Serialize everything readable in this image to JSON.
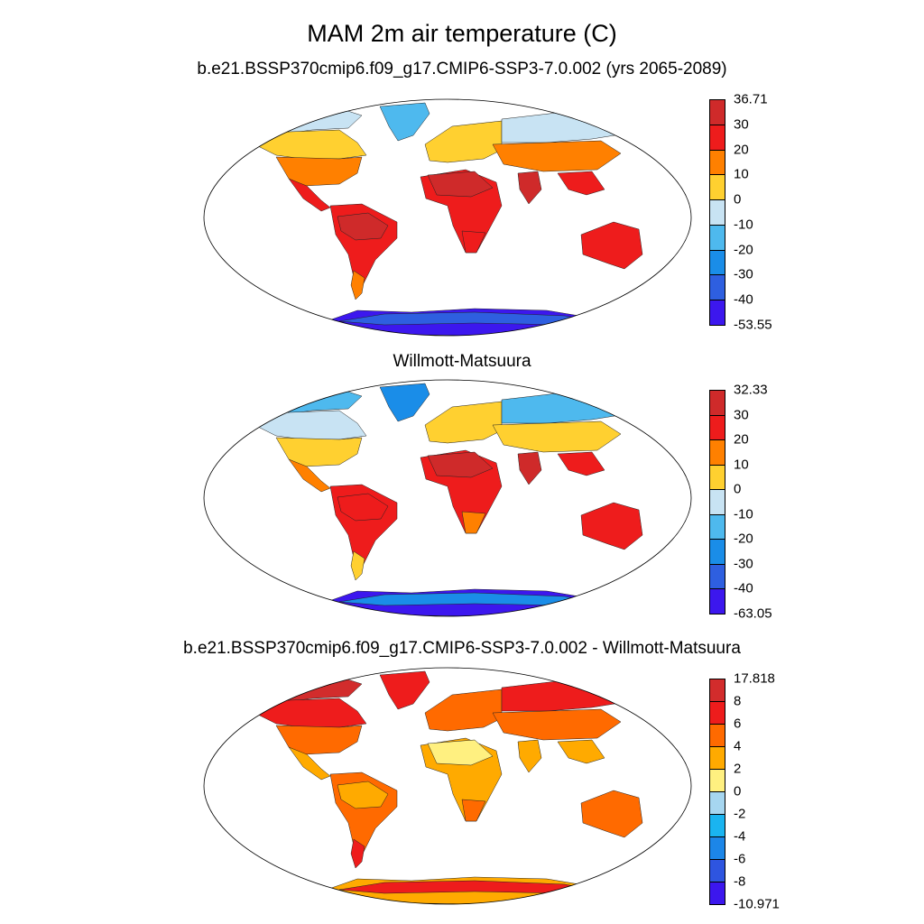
{
  "title": "MAM 2m air temperature (C)",
  "panels": [
    {
      "id": "p1",
      "title": "b.e21.BSSP370cmip6.f09_g17.CMIP6-SSP3-7.0.002 (yrs 2065-2089)",
      "colorbar": {
        "colors": [
          "#cf2a2a",
          "#ee1c1c",
          "#ff8000",
          "#ffd030",
          "#c8e3f3",
          "#4eb9ee",
          "#1a8de8",
          "#2e5fe0",
          "#3c17ee"
        ],
        "labels": [
          "36.71",
          "30",
          "20",
          "10",
          "0",
          "-10",
          "-20",
          "-30",
          "-40",
          "-53.55"
        ]
      },
      "region_colors": {
        "arctic": "#c8e3f3",
        "canada": "#ffd030",
        "usa": "#ff8000",
        "mexico": "#ee1c1c",
        "samerica": "#ee1c1c",
        "amazon": "#cf2a2a",
        "patagonia": "#ff8000",
        "europe": "#ffd030",
        "siberia": "#c8e3f3",
        "centralasia": "#ff8000",
        "africa": "#ee1c1c",
        "sahara": "#cf2a2a",
        "southafrica": "#ee1c1c",
        "india": "#cf2a2a",
        "seasia": "#ee1c1c",
        "australia": "#ee1c1c",
        "greenland": "#4eb9ee",
        "antarctica": "#3c17ee",
        "antarctic_coast": "#2e5fe0"
      }
    },
    {
      "id": "p2",
      "title": "Willmott-Matsuura",
      "colorbar": {
        "colors": [
          "#cf2a2a",
          "#ee1c1c",
          "#ff8000",
          "#ffd030",
          "#c8e3f3",
          "#4eb9ee",
          "#1a8de8",
          "#2e5fe0",
          "#3c17ee"
        ],
        "labels": [
          "32.33",
          "30",
          "20",
          "10",
          "0",
          "-10",
          "-20",
          "-30",
          "-40",
          "-63.05"
        ]
      },
      "region_colors": {
        "arctic": "#4eb9ee",
        "canada": "#c8e3f3",
        "usa": "#ffd030",
        "mexico": "#ff8000",
        "samerica": "#ee1c1c",
        "amazon": "#ee1c1c",
        "patagonia": "#ffd030",
        "europe": "#ffd030",
        "siberia": "#4eb9ee",
        "centralasia": "#ffd030",
        "africa": "#ee1c1c",
        "sahara": "#cf2a2a",
        "southafrica": "#ff8000",
        "india": "#cf2a2a",
        "seasia": "#ee1c1c",
        "australia": "#ee1c1c",
        "greenland": "#1a8de8",
        "antarctica": "#3c17ee",
        "antarctic_coast": "#1a8de8"
      }
    },
    {
      "id": "p3",
      "title": "b.e21.BSSP370cmip6.f09_g17.CMIP6-SSP3-7.0.002 - Willmott-Matsuura",
      "colorbar": {
        "colors": [
          "#d22c2c",
          "#ee1c1c",
          "#ff6a00",
          "#ffaa00",
          "#fff080",
          "#a6d6f0",
          "#1ab4f0",
          "#1c86e8",
          "#2e55e0",
          "#3c17ee"
        ],
        "labels": [
          "17.818",
          "8",
          "6",
          "4",
          "2",
          "0",
          "-2",
          "-4",
          "-6",
          "-8",
          "-10.971"
        ]
      },
      "region_colors": {
        "arctic": "#d22c2c",
        "canada": "#ee1c1c",
        "usa": "#ff6a00",
        "mexico": "#ffaa00",
        "samerica": "#ff6a00",
        "amazon": "#ffaa00",
        "patagonia": "#ee1c1c",
        "europe": "#ff6a00",
        "siberia": "#ee1c1c",
        "centralasia": "#ff6a00",
        "africa": "#ffaa00",
        "sahara": "#fff080",
        "southafrica": "#ff6a00",
        "india": "#ffaa00",
        "seasia": "#ffaa00",
        "australia": "#ff6a00",
        "greenland": "#ee1c1c",
        "antarctica": "#ffaa00",
        "antarctic_coast": "#ee1c1c"
      }
    }
  ]
}
